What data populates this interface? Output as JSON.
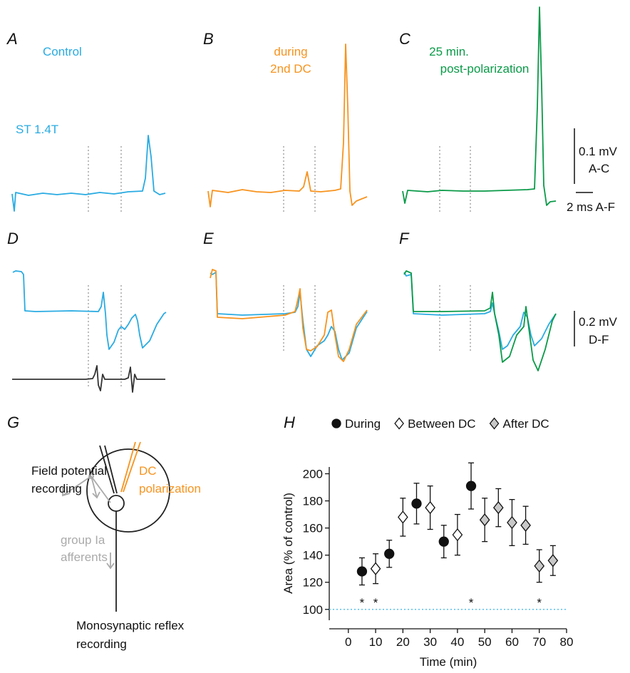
{
  "panel_labels": [
    "A",
    "B",
    "C",
    "D",
    "E",
    "F",
    "G",
    "H"
  ],
  "captions": {
    "control": "Control",
    "during": [
      "during",
      "2nd DC"
    ],
    "post": [
      "25 min.",
      "post-polarization"
    ],
    "stimulus": "ST 1.4T"
  },
  "scale_bars": {
    "ac_voltage": "0.1 mV",
    "ac_range": "A-C",
    "time": "2 ms A-F",
    "df_voltage": "0.2 mV",
    "df_range": "D-F"
  },
  "diagram": {
    "field": [
      "Field potential",
      "recording"
    ],
    "dc": [
      "DC",
      "polarization"
    ],
    "afferents": [
      "group Ia",
      "afferents"
    ],
    "reflex": [
      "Monosynaptic reflex",
      "recording"
    ]
  },
  "chart_data": {
    "type": "scatter",
    "x_label": "Time (min)",
    "y_label": "Area (% of control)",
    "xlim": [
      -7,
      80
    ],
    "xticks": [
      0,
      10,
      20,
      30,
      40,
      50,
      60,
      70,
      80
    ],
    "ylim": [
      92,
      205
    ],
    "yticks": [
      100,
      120,
      140,
      160,
      180,
      200
    ],
    "baseline": 100,
    "baseline_color": "#5bc0eb",
    "legend": "top",
    "series": [
      {
        "name": "During",
        "color": "#111111",
        "marker": "circle",
        "x": [
          5,
          15,
          25,
          35,
          45
        ],
        "values": [
          128,
          141,
          178,
          150,
          191
        ],
        "errors": [
          10,
          10,
          15,
          12,
          17
        ]
      },
      {
        "name": "Between DC",
        "color": "#ffffff",
        "marker": "diamond",
        "x": [
          10,
          20,
          30,
          40
        ],
        "values": [
          130,
          168,
          175,
          155
        ],
        "errors": [
          11,
          14,
          16,
          15
        ]
      },
      {
        "name": "After DC",
        "color": "#c8c8c8",
        "marker": "diamond",
        "x": [
          50,
          55,
          60,
          65,
          70,
          75
        ],
        "values": [
          166,
          175,
          164,
          162,
          132,
          136
        ],
        "errors": [
          16,
          14,
          17,
          14,
          12,
          11
        ]
      }
    ],
    "annotations": [
      {
        "text": "*",
        "x": 5
      },
      {
        "text": "*",
        "x": 10
      },
      {
        "text": "*",
        "x": 45
      },
      {
        "text": "*",
        "x": 70
      }
    ]
  }
}
